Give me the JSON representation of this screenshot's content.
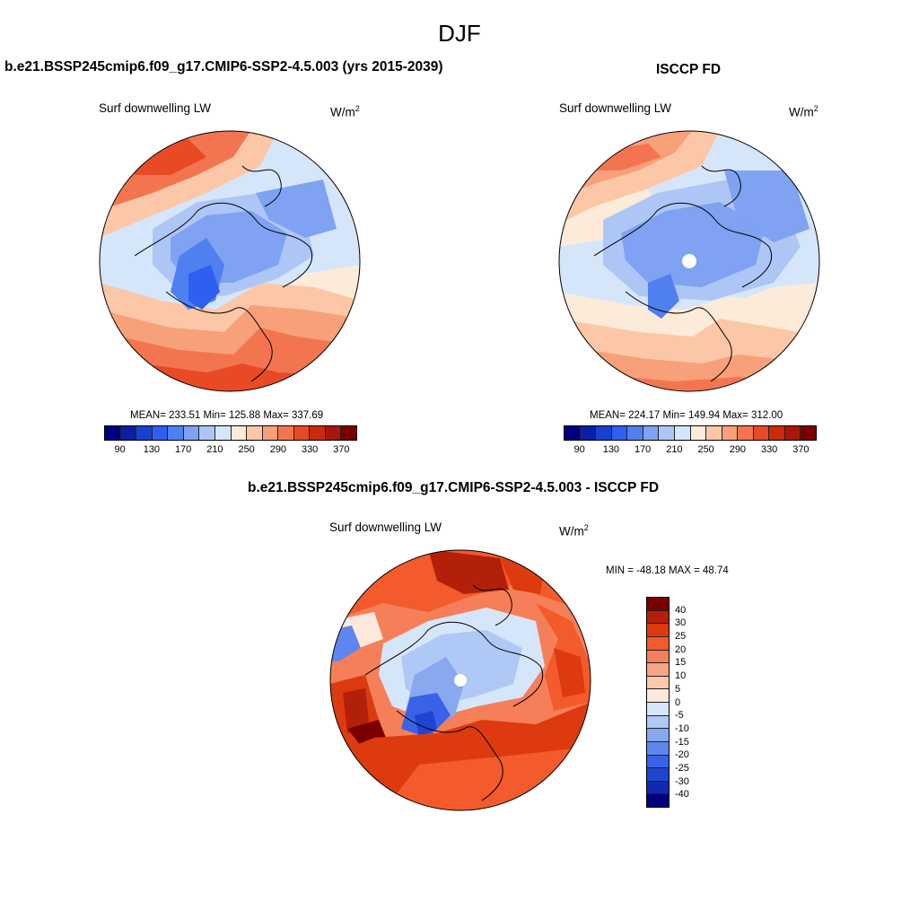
{
  "main_title": "DJF",
  "panels": [
    {
      "title": "b.e21.BSSP245cmip6.f09_g17.CMIP6-SSP2-4.5.003 (yrs 2015-2039)",
      "variable": "Surf downwelling LW",
      "units_base": "W/m",
      "units_exp": "2",
      "stats": "MEAN= 233.51   Min= 125.88   Max= 337.69"
    },
    {
      "title": "ISCCP FD",
      "variable": "Surf downwelling LW",
      "units_base": "W/m",
      "units_exp": "2",
      "stats": "MEAN= 224.17   Min= 149.94   Max= 312.00"
    },
    {
      "title": "b.e21.BSSP245cmip6.f09_g17.CMIP6-SSP2-4.5.003 - ISCCP FD",
      "variable": "Surf downwelling LW",
      "units_base": "W/m",
      "units_exp": "2",
      "stats": "MIN = -48.18 MAX =  48.74"
    }
  ],
  "colorbar_abs": {
    "colors": [
      "#00007f",
      "#0a1fa6",
      "#1a3fd0",
      "#2f5ff0",
      "#5080f0",
      "#7fa2f2",
      "#aec6f6",
      "#d6e6fa",
      "#fdebd9",
      "#fbc7a6",
      "#f7a07a",
      "#f37550",
      "#e84a25",
      "#cc2a0c",
      "#a8180a",
      "#7a0000"
    ],
    "tick_labels": [
      "90",
      "130",
      "170",
      "210",
      "250",
      "290",
      "330",
      "370"
    ]
  },
  "colorbar_diff": {
    "colors": [
      "#7a0000",
      "#b3200a",
      "#dd3a0f",
      "#f35a2c",
      "#f47f58",
      "#f7a582",
      "#fbc8ab",
      "#fde9dc",
      "#d6e6fa",
      "#afc8f5",
      "#88a8f0",
      "#5e86ee",
      "#3a62e6",
      "#1f44cf",
      "#0f2aae",
      "#00007f"
    ],
    "tick_labels": [
      "40",
      "30",
      "25",
      "20",
      "15",
      "10",
      "5",
      "0",
      "-5",
      "-10",
      "-15",
      "-20",
      "-25",
      "-30",
      "-40"
    ]
  }
}
